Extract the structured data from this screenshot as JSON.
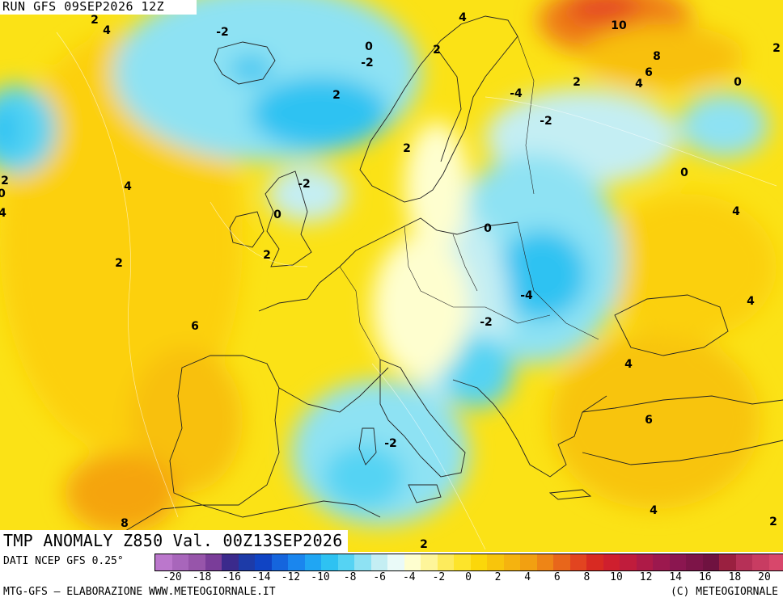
{
  "header": {
    "run": "RUN GFS 09SEP2026 12Z"
  },
  "map": {
    "title": "TMP ANOMALY Z850 Val. 00Z13SEP2026",
    "contour_labels": [
      "2",
      "4",
      "-2",
      "0",
      "-2",
      "2",
      "4",
      "10",
      "8",
      "6",
      "4",
      "2",
      "0",
      "-4",
      "2",
      "-2",
      "0",
      "2",
      "4",
      "-2",
      "0",
      "0",
      "2",
      "4",
      "2",
      "-4",
      "-2",
      "4",
      "6",
      "6",
      "4",
      "-2",
      "2",
      "8",
      "0",
      "2",
      "4",
      "2",
      "4",
      "2"
    ]
  },
  "legend": {
    "colors": [
      "#bb77cc",
      "#a866bb",
      "#9755aa",
      "#7a3d99",
      "#3b2a8c",
      "#1d3ba8",
      "#1044c4",
      "#1565dd",
      "#1a86ee",
      "#20a6f3",
      "#2ec2f2",
      "#55d3f3",
      "#8ee2f3",
      "#c4eef3",
      "#eafaf8",
      "#fefecf",
      "#fef59a",
      "#fdeb5c",
      "#fde42a",
      "#fbd70a",
      "#f8c50c",
      "#f5b30f",
      "#f2a011",
      "#ee8516",
      "#e8661b",
      "#e24420",
      "#d82a22",
      "#cf1f2e",
      "#c01c3c",
      "#ae1a47",
      "#9c184e",
      "#8b1650",
      "#7d1448",
      "#6f1240",
      "#9a2040",
      "#b63057",
      "#c83c62",
      "#d8476b"
    ],
    "ticks": [
      "-20",
      "-18",
      "-16",
      "-14",
      "-12",
      "-10",
      "-8",
      "-6",
      "-4",
      "-2",
      "0",
      "2",
      "4",
      "6",
      "8",
      "10",
      "12",
      "14",
      "16",
      "18",
      "20"
    ],
    "unit_note": "DATI NCEP GFS 0.25°"
  },
  "footer": {
    "credits": "MTG-GFS – ELABORAZIONE WWW.METEOGIORNALE.IT",
    "copyright": "(C) METEOGIORNALE"
  }
}
